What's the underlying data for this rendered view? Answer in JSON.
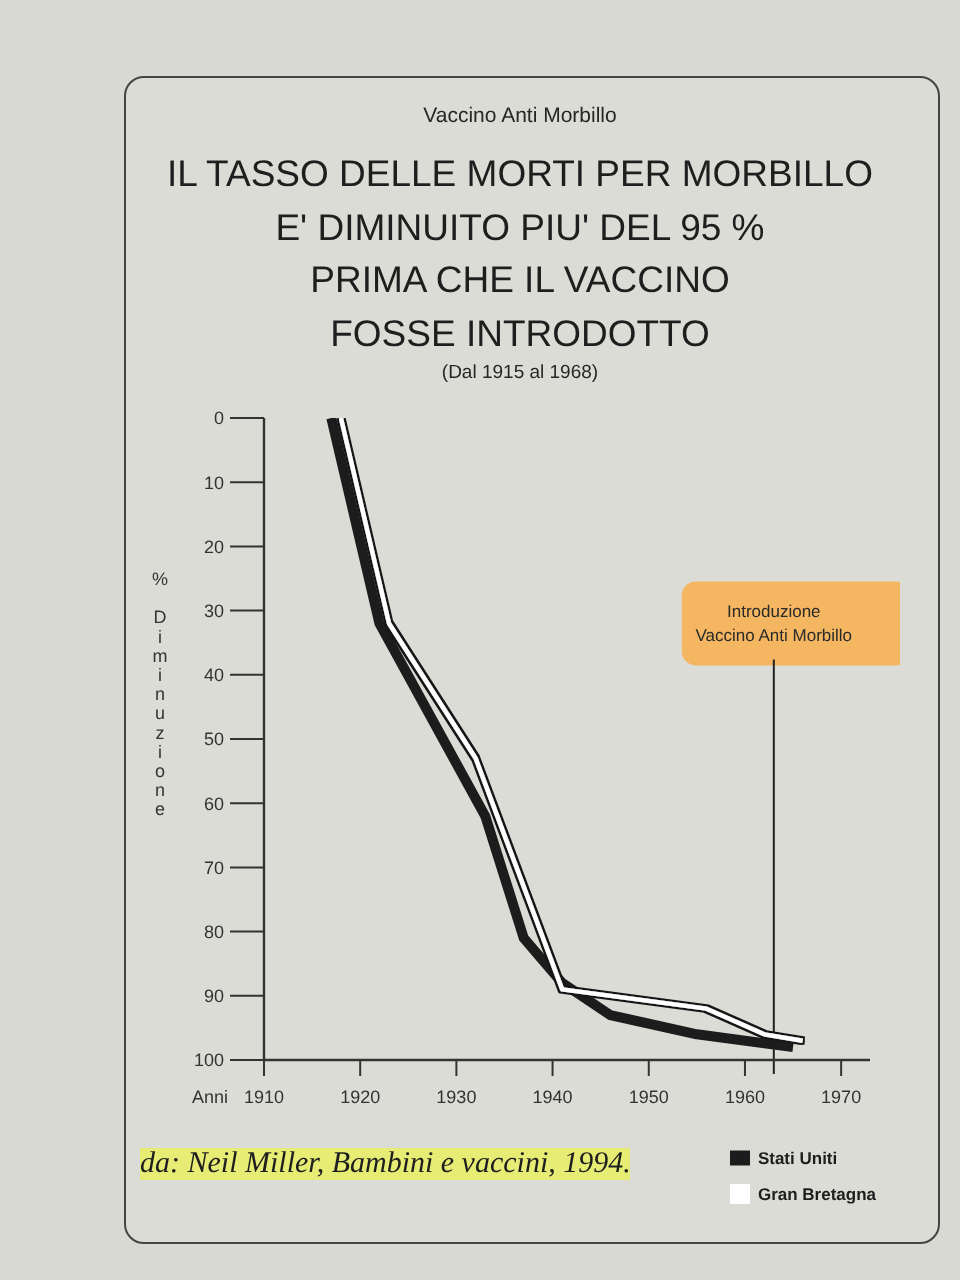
{
  "chart_data": {
    "type": "line",
    "title": "IL TASSO DELLE MORTI PER MORBILLO\nE' DIMINUITO PIU' DEL 95 %\nPRIMA CHE IL VACCINO\nFOSSE INTRODOTTO",
    "subtitle": "(Dal 1915 al 1968)",
    "xlabel": "Anni",
    "ylabel": "% Diminuzione",
    "annotations": [
      "Vaccino Anti Morbillo",
      "da: Neil Miller, Bambini e vaccini, 1994."
    ],
    "series": [
      {
        "name": "Stati Uniti",
        "color": "#1c1c1c",
        "x": [
          1917,
          1922,
          1933,
          1937,
          1941,
          1946,
          1955,
          1965
        ],
        "values": [
          0,
          32,
          62,
          81,
          88,
          93,
          96,
          98
        ]
      },
      {
        "name": "Gran Bretagna",
        "color": "#ffffff",
        "x": [
          1918,
          1923,
          1932,
          1938,
          1941,
          1956,
          1962,
          1966
        ],
        "values": [
          0,
          32,
          53,
          77,
          89,
          92,
          96,
          97
        ]
      }
    ],
    "xlim": [
      1910,
      1973
    ],
    "xticks": [
      1910,
      1920,
      1930,
      1940,
      1950,
      1960,
      1970
    ],
    "ylim": [
      100,
      0
    ],
    "yticks": [
      0,
      10,
      20,
      30,
      40,
      50,
      60,
      70,
      80,
      90,
      100
    ],
    "ref_lines": [
      {
        "axis": "x",
        "value": 1963,
        "label": "Introduzione\nVaccino Anti Morbillo",
        "color": "#222222"
      }
    ],
    "legend": "bottom right"
  }
}
